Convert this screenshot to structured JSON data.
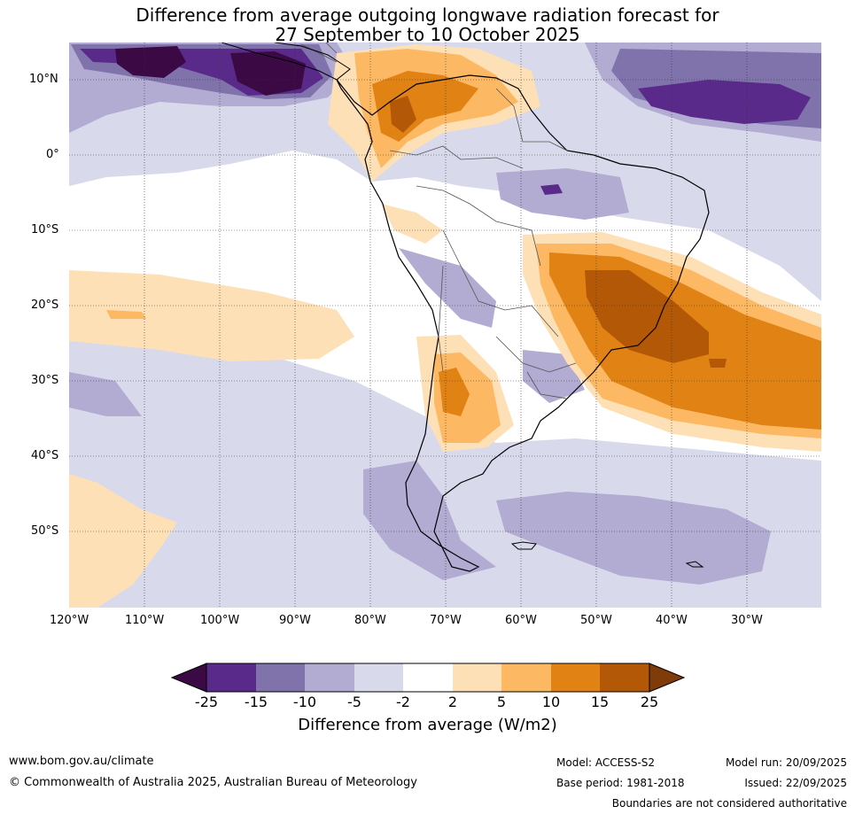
{
  "title": {
    "line1": "Difference from average outgoing longwave radiation forecast for",
    "line2": "27 September to 10 October 2025"
  },
  "map": {
    "region": "South America and surrounding oceans",
    "lat_labels": [
      "10°N",
      "0°",
      "10°S",
      "20°S",
      "30°S",
      "40°S",
      "50°S"
    ],
    "lon_labels": [
      "120°W",
      "110°W",
      "100°W",
      "90°W",
      "80°W",
      "70°W",
      "60°W",
      "50°W",
      "40°W",
      "30°W"
    ]
  },
  "colorbar": {
    "ticks": [
      "-25",
      "-15",
      "-10",
      "-5",
      "-2",
      "2",
      "5",
      "10",
      "15",
      "25"
    ],
    "colors": [
      "#3b0a45",
      "#5a2a8a",
      "#8073ac",
      "#b2abd2",
      "#d8daeb",
      "#ffffff",
      "#fee0b6",
      "#fdb863",
      "#e08214",
      "#b35806",
      "#7f3b08"
    ],
    "label": "Difference from average (W/m2)"
  },
  "footer": {
    "website": "www.bom.gov.au/climate",
    "copyright": "© Commonwealth of Australia 2025, Australian Bureau of Meteorology",
    "model": "Model: ACCESS-S2",
    "base_period": "Base period: 1981-2018",
    "model_run": "Model run: 20/09/2025",
    "issued": "Issued: 22/09/2025",
    "disclaimer": "Boundaries are not considered authoritative"
  }
}
